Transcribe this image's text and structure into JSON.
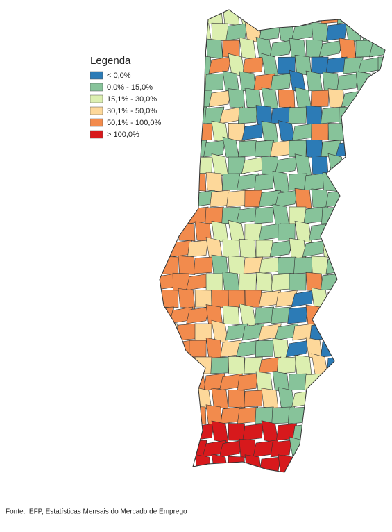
{
  "legend": {
    "title": "Legenda",
    "items": [
      {
        "label": "< 0,0%",
        "color": "#2c7bb6"
      },
      {
        "label": "0,0% - 15,0%",
        "color": "#87c39a"
      },
      {
        "label": "15,1% - 30,0%",
        "color": "#dcefb0"
      },
      {
        "label": "30,1% - 50,0%",
        "color": "#fdd89a"
      },
      {
        "label": "50,1% - 100,0%",
        "color": "#f28b4d"
      },
      {
        "label": "> 100,0%",
        "color": "#d7191c"
      }
    ]
  },
  "source": "Fonte: IEFP, Estatísticas Mensais do Mercado de Emprego"
}
